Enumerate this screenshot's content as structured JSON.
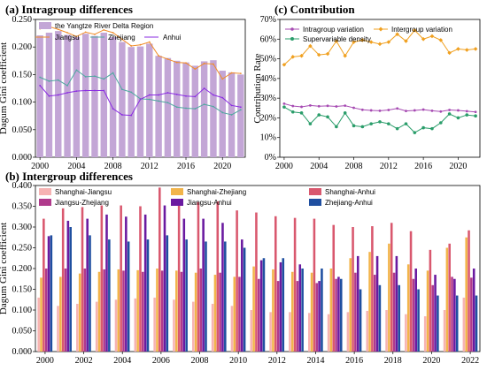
{
  "colors": {
    "yrd_bar": "#c3a6d6",
    "jiangsu": "#f08c2a",
    "zhejiang": "#4fa8a0",
    "anhui": "#8a2be2",
    "intra_variation": "#a64ab2",
    "inter_variation": "#f0a020",
    "supervariable": "#2a9d6a",
    "sh_js": "#f6b3b3",
    "sh_zj": "#f2b44a",
    "sh_ah": "#d9586e",
    "js_zj": "#b03a8c",
    "js_ah": "#6a1aa0",
    "zj_ah": "#1f4fa0"
  },
  "chart_data": [
    {
      "id": "a",
      "type": "bar",
      "title": "(a) Intragroup differences",
      "ylabel": "Dagum Gini coefficient",
      "ylim": [
        0,
        0.25
      ],
      "yticks": [
        "0.000",
        "0.050",
        "0.100",
        "0.150",
        "0.200",
        "0.250"
      ],
      "xticks": [
        "2000",
        "2004",
        "2008",
        "2012",
        "2016",
        "2020"
      ],
      "years": [
        2000,
        2001,
        2002,
        2003,
        2004,
        2005,
        2006,
        2007,
        2008,
        2009,
        2010,
        2011,
        2012,
        2013,
        2014,
        2015,
        2016,
        2017,
        2018,
        2019,
        2020,
        2021,
        2022
      ],
      "legend": [
        "the Yangtze River Delta Region",
        "Jiangsu",
        "Zhejiang",
        "Anhui"
      ],
      "series": [
        {
          "name": "the Yangtze River Delta Region",
          "kind": "bar",
          "values": [
            0.221,
            0.226,
            0.229,
            0.222,
            0.218,
            0.224,
            0.22,
            0.226,
            0.218,
            0.209,
            0.2,
            0.201,
            0.206,
            0.184,
            0.18,
            0.175,
            0.172,
            0.166,
            0.174,
            0.176,
            0.157,
            0.154,
            0.15
          ]
        },
        {
          "name": "Jiangsu",
          "kind": "line",
          "values": [
            0.233,
            0.237,
            0.232,
            0.226,
            0.219,
            0.227,
            0.223,
            0.231,
            0.226,
            0.214,
            0.202,
            0.204,
            0.209,
            0.184,
            0.178,
            0.172,
            0.171,
            0.16,
            0.17,
            0.169,
            0.142,
            0.153,
            0.152
          ]
        },
        {
          "name": "Zhejiang",
          "kind": "line",
          "values": [
            0.145,
            0.138,
            0.14,
            0.13,
            0.158,
            0.146,
            0.147,
            0.142,
            0.153,
            0.123,
            0.118,
            0.106,
            0.105,
            0.102,
            0.099,
            0.091,
            0.089,
            0.088,
            0.096,
            0.092,
            0.081,
            0.077,
            0.086
          ]
        },
        {
          "name": "Anhui",
          "kind": "line",
          "values": [
            0.13,
            0.111,
            0.113,
            0.117,
            0.12,
            0.121,
            0.121,
            0.121,
            0.088,
            0.077,
            0.076,
            0.105,
            0.113,
            0.113,
            0.117,
            0.114,
            0.111,
            0.11,
            0.125,
            0.113,
            0.108,
            0.094,
            0.091
          ]
        }
      ]
    },
    {
      "id": "c",
      "type": "line",
      "title": "(c)  Contribution",
      "ylabel": "Contribution Rate",
      "ylim": [
        0,
        70
      ],
      "yticks": [
        "0%",
        "10%",
        "20%",
        "30%",
        "40%",
        "50%",
        "60%",
        "70%"
      ],
      "xticks": [
        "2000",
        "2004",
        "2008",
        "2012",
        "2016",
        "2020"
      ],
      "years": [
        2000,
        2001,
        2002,
        2003,
        2004,
        2005,
        2006,
        2007,
        2008,
        2009,
        2010,
        2011,
        2012,
        2013,
        2014,
        2015,
        2016,
        2017,
        2018,
        2019,
        2020,
        2021,
        2022
      ],
      "legend": [
        "Intragroup variation",
        "Intergroup variation",
        "Supervariable density"
      ],
      "series": [
        {
          "name": "Intragroup variation",
          "values": [
            27.2,
            26.0,
            25.6,
            26.3,
            25.9,
            26.1,
            25.8,
            26.2,
            25.1,
            24.1,
            23.8,
            23.6,
            24.0,
            24.8,
            23.5,
            23.8,
            24.2,
            23.6,
            23.2,
            24.0,
            23.8,
            23.4,
            23.0
          ]
        },
        {
          "name": "Intergroup variation",
          "values": [
            47.0,
            51.0,
            51.5,
            56.5,
            52.0,
            52.5,
            59.0,
            51.5,
            58.5,
            59.5,
            58.5,
            57.5,
            58.5,
            62.5,
            59.0,
            64.5,
            60.0,
            61.5,
            59.5,
            53.0,
            55.0,
            54.5,
            55.0
          ]
        },
        {
          "name": "Supervariable density",
          "values": [
            25.5,
            23.0,
            22.5,
            17.0,
            21.5,
            20.5,
            15.5,
            22.5,
            16.0,
            15.5,
            17.0,
            18.0,
            17.0,
            14.5,
            17.0,
            12.5,
            15.0,
            14.5,
            17.5,
            22.0,
            20.0,
            21.5,
            21.0
          ]
        }
      ]
    },
    {
      "id": "b",
      "type": "bar",
      "title": "(b) Intergroup differences",
      "ylabel": "Dagum Gini coefficient",
      "ylim": [
        0,
        0.4
      ],
      "yticks": [
        "0.000",
        "0.050",
        "0.100",
        "0.150",
        "0.200",
        "0.250",
        "0.300",
        "0.350",
        "0.400"
      ],
      "xticks": [
        "2000",
        "2002",
        "2004",
        "2006",
        "2008",
        "2010",
        "2012",
        "2014",
        "2016",
        "2018",
        "2020",
        "2022"
      ],
      "years": [
        2000,
        2001,
        2002,
        2003,
        2004,
        2005,
        2006,
        2007,
        2008,
        2009,
        2010,
        2011,
        2012,
        2013,
        2014,
        2015,
        2016,
        2017,
        2018,
        2019,
        2020,
        2021,
        2022
      ],
      "legend": [
        "Shanghai-Jiangsu",
        "Shanghai-Zhejiang",
        "Shanghai-Anhui",
        "Jiangsu-Zhejiang",
        "Jiangsu-Anhui",
        "Zhejiang-Anhui"
      ],
      "series": [
        {
          "name": "Shanghai-Jiangsu",
          "values": [
            0.13,
            0.11,
            0.115,
            0.12,
            0.125,
            0.128,
            0.13,
            0.125,
            0.12,
            0.115,
            0.11,
            0.1,
            0.095,
            0.095,
            0.093,
            0.09,
            0.095,
            0.098,
            0.1,
            0.09,
            0.085,
            0.1,
            0.13
          ]
        },
        {
          "name": "Shanghai-Zhejiang",
          "values": [
            0.178,
            0.18,
            0.188,
            0.192,
            0.198,
            0.196,
            0.2,
            0.195,
            0.19,
            0.185,
            0.18,
            0.205,
            0.198,
            0.192,
            0.19,
            0.2,
            0.225,
            0.24,
            0.26,
            0.21,
            0.195,
            0.25,
            0.275
          ]
        },
        {
          "name": "Shanghai-Anhui",
          "values": [
            0.32,
            0.345,
            0.348,
            0.352,
            0.352,
            0.35,
            0.395,
            0.358,
            0.36,
            0.362,
            0.34,
            0.335,
            0.326,
            0.322,
            0.32,
            0.305,
            0.3,
            0.302,
            0.31,
            0.29,
            0.245,
            0.26,
            0.292
          ]
        },
        {
          "name": "Jiangsu-Zhejiang",
          "values": [
            0.2,
            0.2,
            0.2,
            0.198,
            0.195,
            0.192,
            0.195,
            0.192,
            0.2,
            0.19,
            0.18,
            0.175,
            0.17,
            0.17,
            0.165,
            0.175,
            0.19,
            0.185,
            0.19,
            0.175,
            0.16,
            0.18,
            0.178
          ]
        },
        {
          "name": "Jiangsu-Anhui",
          "values": [
            0.278,
            0.315,
            0.32,
            0.33,
            0.325,
            0.33,
            0.352,
            0.32,
            0.32,
            0.31,
            0.27,
            0.22,
            0.215,
            0.21,
            0.17,
            0.18,
            0.23,
            0.23,
            0.23,
            0.2,
            0.185,
            0.175,
            0.2
          ]
        },
        {
          "name": "Zhejiang-Anhui",
          "values": [
            0.28,
            0.3,
            0.28,
            0.27,
            0.265,
            0.27,
            0.28,
            0.27,
            0.265,
            0.265,
            0.25,
            0.225,
            0.225,
            0.2,
            0.2,
            0.175,
            0.15,
            0.16,
            0.16,
            0.15,
            0.135,
            0.135,
            0.135
          ]
        }
      ]
    }
  ]
}
